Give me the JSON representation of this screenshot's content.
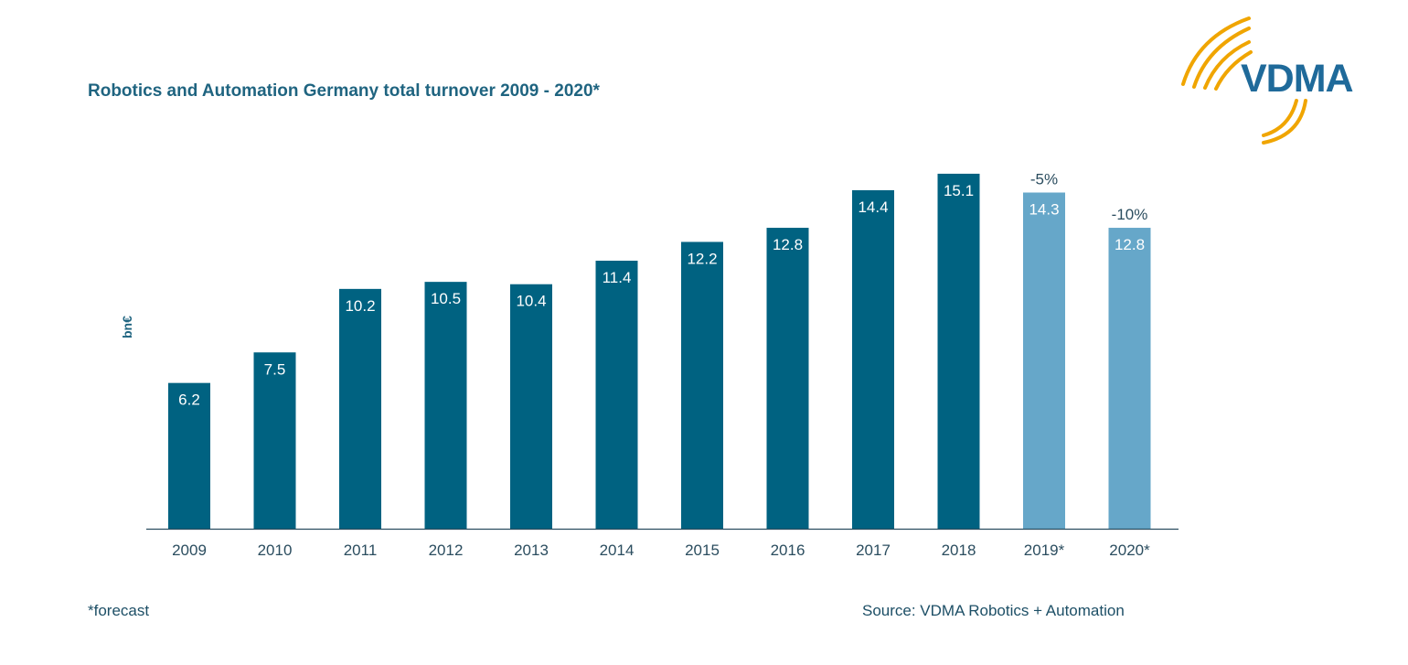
{
  "logo": {
    "text": "VDMA",
    "arc_color": "#f0a500",
    "text_color": "#1f6a9a"
  },
  "footnote": "*forecast",
  "source": "Source: VDMA Robotics + Automation",
  "colors": {
    "actual": "#006281",
    "forecast": "#66a7c9",
    "text": "#1f6480",
    "axis": "#2b4d5f"
  },
  "chart_data": {
    "type": "bar",
    "title": "Robotics and Automation Germany total turnover 2009 - 2020*",
    "xlabel": "",
    "ylabel": "bn€",
    "ylim": [
      0,
      15.1
    ],
    "grid": false,
    "categories": [
      "2009",
      "2010",
      "2011",
      "2012",
      "2013",
      "2014",
      "2015",
      "2016",
      "2017",
      "2018",
      "2019*",
      "2020*"
    ],
    "values": [
      6.2,
      7.5,
      10.2,
      10.5,
      10.4,
      11.4,
      12.2,
      12.8,
      14.4,
      15.1,
      14.3,
      12.8
    ],
    "value_labels": [
      "6.2",
      "7.5",
      "10.2",
      "10.5",
      "10.4",
      "11.4",
      "12.2",
      "12.8",
      "14.4",
      "15.1",
      "14.3",
      "12.8"
    ],
    "forecast": [
      false,
      false,
      false,
      false,
      false,
      false,
      false,
      false,
      false,
      false,
      true,
      true
    ],
    "annotations": [
      "",
      "",
      "",
      "",
      "",
      "",
      "",
      "",
      "",
      "",
      "-5%",
      "-10%"
    ]
  }
}
